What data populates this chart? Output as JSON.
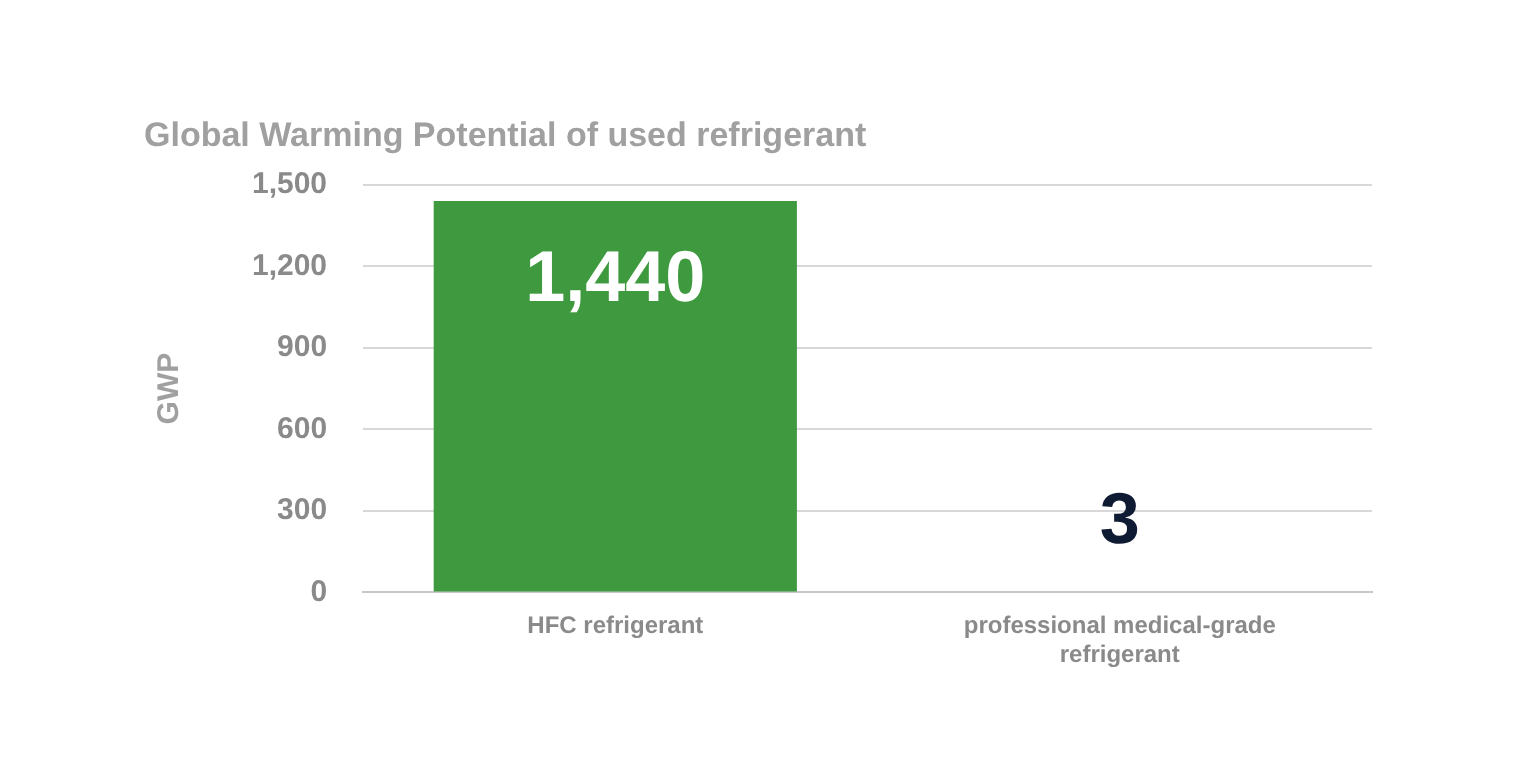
{
  "chart_data": {
    "type": "bar",
    "title": "Global Warming Potential of used refrigerant",
    "ylabel": "GWP",
    "categories": [
      "HFC refrigerant",
      "professional medical-grade refrigerant"
    ],
    "values": [
      1440,
      3
    ],
    "colors": [
      "#3f9a3f",
      "#c9d6cc"
    ],
    "value_labels": [
      "1,440",
      "3"
    ],
    "ylim": [
      0,
      1500
    ],
    "yticks": [
      {
        "value": 0,
        "label": "0"
      },
      {
        "value": 300,
        "label": "300"
      },
      {
        "value": 600,
        "label": "600"
      },
      {
        "value": 900,
        "label": "900"
      },
      {
        "value": 1200,
        "label": "1,200"
      },
      {
        "value": 1500,
        "label": "1,500"
      }
    ],
    "grid": "y",
    "legend": false
  }
}
